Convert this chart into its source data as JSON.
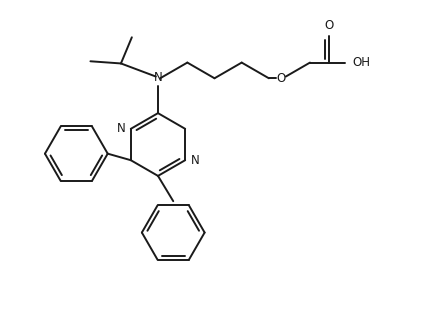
{
  "bg_color": "#ffffff",
  "line_color": "#1a1a1a",
  "line_width": 1.4,
  "font_size": 8.5,
  "figsize": [
    4.38,
    3.13
  ],
  "dpi": 100,
  "xlim": [
    0,
    10
  ],
  "ylim": [
    0,
    7.15
  ]
}
